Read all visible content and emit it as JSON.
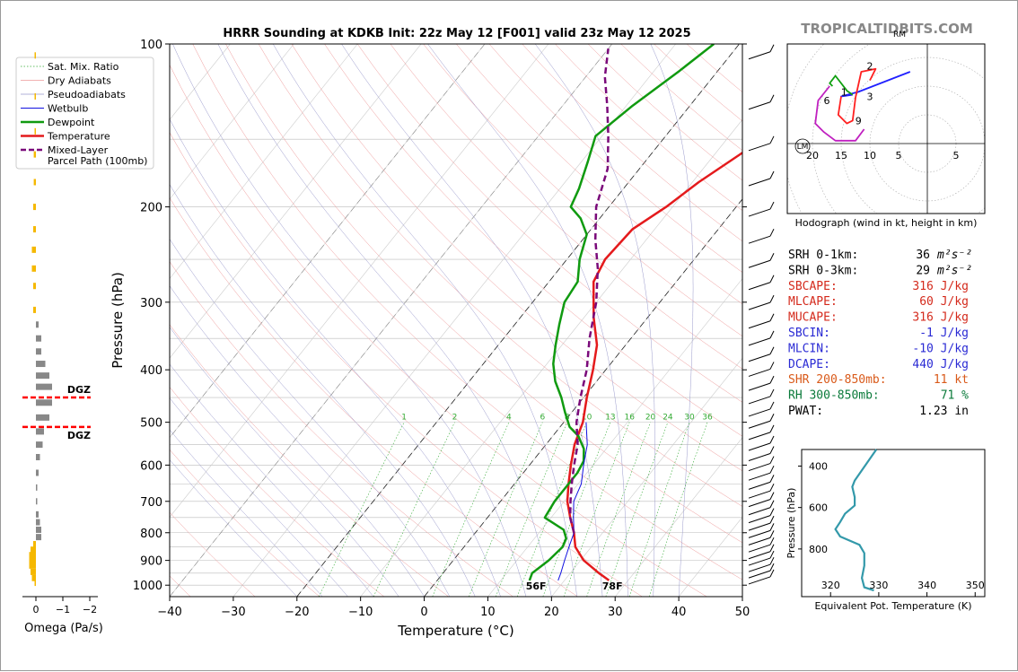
{
  "title": "HRRR Sounding at KDKB Init: 22z May 12 [F001] valid 23z May 12 2025",
  "watermark": "TROPICALTIDBITS.COM",
  "chart_data": [
    {
      "type": "line",
      "name": "skewt",
      "xlabel": "Temperature (°C)",
      "ylabel": "Pressure (hPa)",
      "xlim": [
        -40,
        50
      ],
      "ylim": [
        1050,
        100
      ],
      "y_scale": "log",
      "x_ticks": [
        -40,
        -30,
        -20,
        -10,
        0,
        10,
        20,
        30,
        40,
        50
      ],
      "x_tick_labels": [
        "−40",
        "−30",
        "−20",
        "−10",
        "0",
        "10",
        "20",
        "30",
        "40",
        "50"
      ],
      "y_ticks": [
        100,
        200,
        300,
        400,
        500,
        600,
        700,
        800,
        900,
        1000
      ],
      "legend": {
        "position": "upper-left",
        "entries": [
          "Sat. Mix. Ratio",
          "Dry Adiabats",
          "Pseudoadiabats",
          "Wetbulb",
          "Dewpoint",
          "Temperature",
          "Mixed-Layer\nParcel Path (100mb)"
        ]
      },
      "colors": {
        "temperature": "#e41a1c",
        "dewpoint": "#109a10",
        "wetbulb": "#1010e0",
        "parcel": "#7a0a7a"
      },
      "series": [
        {
          "name": "Temperature",
          "points": [
            [
              27,
              980
            ],
            [
              24.5,
              950
            ],
            [
              20.5,
              900
            ],
            [
              17.5,
              850
            ],
            [
              15.5,
              800
            ],
            [
              13,
              750
            ],
            [
              10.5,
              700
            ],
            [
              8.5,
              650
            ],
            [
              6.5,
              600
            ],
            [
              4.5,
              550
            ],
            [
              3,
              500
            ],
            [
              0.5,
              450
            ],
            [
              -2,
              400
            ],
            [
              -4.5,
              360
            ],
            [
              -8.5,
              320
            ],
            [
              -13,
              275
            ],
            [
              -14,
              250
            ],
            [
              -13.5,
              220
            ],
            [
              -11,
              200
            ],
            [
              -9,
              180
            ],
            [
              -6,
              160
            ],
            [
              -3.5,
              145
            ],
            [
              -1,
              125
            ],
            [
              0.5,
              110
            ],
            [
              1.5,
              100
            ]
          ]
        },
        {
          "name": "Dewpoint",
          "points": [
            [
              14.5,
              980
            ],
            [
              14,
              950
            ],
            [
              15,
              900
            ],
            [
              15.5,
              850
            ],
            [
              15,
              820
            ],
            [
              13.5,
              790
            ],
            [
              9,
              750
            ],
            [
              8.5,
              700
            ],
            [
              8.5,
              650
            ],
            [
              8.5,
              620
            ],
            [
              8,
              590
            ],
            [
              6.5,
              560
            ],
            [
              4,
              530
            ],
            [
              1.5,
              510
            ],
            [
              -1,
              480
            ],
            [
              -3.5,
              450
            ],
            [
              -6.5,
              420
            ],
            [
              -9,
              390
            ],
            [
              -11,
              360
            ],
            [
              -13,
              330
            ],
            [
              -15,
              300
            ],
            [
              -15.5,
              275
            ],
            [
              -18,
              250
            ],
            [
              -20,
              225
            ],
            [
              -23,
              210
            ],
            [
              -26,
              200
            ],
            [
              -27,
              185
            ],
            [
              -29,
              165
            ],
            [
              -31,
              148
            ],
            [
              -29,
              130
            ],
            [
              -26,
              112
            ],
            [
              -24,
              100
            ]
          ]
        },
        {
          "name": "Wetbulb",
          "points": [
            [
              19,
              980
            ],
            [
              18.5,
              950
            ],
            [
              17.5,
              900
            ],
            [
              16.5,
              850
            ],
            [
              15.5,
              800
            ],
            [
              13.5,
              750
            ],
            [
              11.5,
              700
            ],
            [
              10.5,
              650
            ],
            [
              8.5,
              600
            ],
            [
              6.5,
              550
            ],
            [
              3.5,
              500
            ]
          ]
        },
        {
          "name": "Mixed-Layer Parcel Path (100mb)",
          "points": [
            [
              15.5,
              800
            ],
            [
              13,
              750
            ],
            [
              11,
              700
            ],
            [
              9,
              650
            ],
            [
              7,
              600
            ],
            [
              5,
              550
            ],
            [
              2,
              500
            ],
            [
              -0.5,
              450
            ],
            [
              -3,
              400
            ],
            [
              -6.5,
              350
            ],
            [
              -10,
              300
            ],
            [
              -14,
              260
            ],
            [
              -18,
              230
            ],
            [
              -22,
              200
            ],
            [
              -25,
              170
            ],
            [
              -29,
              148
            ],
            [
              -33,
              130
            ],
            [
              -37,
              115
            ],
            [
              -40,
              102
            ]
          ]
        }
      ],
      "annotations": [
        {
          "text": "56F",
          "x": 15,
          "y": 1000,
          "color": "#109a10"
        },
        {
          "text": "78F",
          "x": 27,
          "y": 1000,
          "color": "#e41a1c"
        }
      ],
      "mixing_ratio_labels": [
        "1",
        "2",
        "4",
        "6",
        "8",
        "10",
        "13",
        "16",
        "20",
        "24",
        "30",
        "36"
      ]
    },
    {
      "type": "bar",
      "name": "omega",
      "xlabel": "Omega (Pa/s)",
      "x_ticks": [
        0,
        -1,
        -2
      ],
      "x_tick_labels": [
        "0",
        "−1",
        "−2"
      ],
      "xlim": [
        0.3,
        -2.4
      ],
      "values": [
        [
          105,
          0.05
        ],
        [
          125,
          0.05
        ],
        [
          145,
          0.05
        ],
        [
          160,
          0.08
        ],
        [
          180,
          0.08
        ],
        [
          200,
          0.1
        ],
        [
          220,
          0.1
        ],
        [
          240,
          0.15
        ],
        [
          260,
          0.15
        ],
        [
          280,
          0.1
        ],
        [
          310,
          0.1
        ],
        [
          330,
          -0.1
        ],
        [
          350,
          -0.2
        ],
        [
          370,
          -0.2
        ],
        [
          390,
          -0.35
        ],
        [
          410,
          -0.5
        ],
        [
          430,
          -0.6
        ],
        [
          460,
          -0.6
        ],
        [
          490,
          -0.5
        ],
        [
          520,
          -0.3
        ],
        [
          550,
          -0.25
        ],
        [
          580,
          -0.15
        ],
        [
          620,
          -0.1
        ],
        [
          660,
          -0.05
        ],
        [
          700,
          -0.05
        ],
        [
          740,
          -0.1
        ],
        [
          765,
          -0.15
        ],
        [
          790,
          -0.2
        ],
        [
          815,
          -0.2
        ],
        [
          840,
          0.1
        ],
        [
          860,
          0.2
        ],
        [
          880,
          0.25
        ],
        [
          900,
          0.25
        ],
        [
          920,
          0.25
        ],
        [
          945,
          0.2
        ],
        [
          970,
          0.15
        ],
        [
          990,
          0.05
        ]
      ],
      "dgz": {
        "label": "DGZ",
        "top": 450,
        "bottom": 510
      }
    },
    {
      "type": "line",
      "name": "hodograph",
      "xlabel": "Hodograph (wind in kt, height in km)",
      "ring_labels": [
        "20",
        "15",
        "10",
        "5",
        "5"
      ],
      "storm_motion_labels": [
        "LM",
        "RM"
      ],
      "height_labels": [
        "1",
        "2",
        "3",
        "6",
        "9"
      ],
      "series": [
        {
          "name": "0-1km",
          "color": "#2020ff",
          "points": [
            [
              -13,
              8.5
            ],
            [
              -15,
              8.2
            ],
            [
              -12,
              9
            ],
            [
              -3,
              12.5
            ]
          ]
        },
        {
          "name": "1-3km",
          "color": "#ff2020",
          "points": [
            [
              -15,
              8.2
            ],
            [
              -15.5,
              5
            ],
            [
              -14,
              3.5
            ],
            [
              -13,
              4
            ],
            [
              -12.5,
              8
            ],
            [
              -11.5,
              12.5
            ],
            [
              -9,
              13
            ],
            [
              -10,
              11
            ]
          ]
        },
        {
          "name": "3-6km",
          "color": "#10a010",
          "points": [
            [
              -13,
              8.5
            ],
            [
              -14,
              9.2
            ],
            [
              -16,
              11.8
            ],
            [
              -17,
              10.5
            ],
            [
              -16.5,
              10
            ]
          ]
        },
        {
          "name": "6-9km",
          "color": "#c020c0",
          "points": [
            [
              -17,
              10
            ],
            [
              -19,
              7.5
            ],
            [
              -19.5,
              3.5
            ],
            [
              -18,
              2
            ],
            [
              -16,
              0.5
            ],
            [
              -12.5,
              0.5
            ],
            [
              -11,
              2.5
            ]
          ]
        }
      ]
    },
    {
      "type": "line",
      "name": "theta-e",
      "xlabel": "Equivalent Pot. Temperature (K)",
      "ylabel": "Pressure (hPa)",
      "xlim": [
        314,
        352
      ],
      "ylim": [
        1030,
        320
      ],
      "x_ticks": [
        320,
        330,
        340,
        350
      ],
      "y_ticks": [
        400,
        600,
        800
      ],
      "series": [
        {
          "name": "theta-e",
          "color": "#3399aa",
          "points": [
            [
              329.5,
              320
            ],
            [
              328,
              370
            ],
            [
              326.5,
              420
            ],
            [
              325,
              470
            ],
            [
              324.5,
              500
            ],
            [
              325,
              550
            ],
            [
              325,
              590
            ],
            [
              323,
              630
            ],
            [
              322,
              670
            ],
            [
              321,
              705
            ],
            [
              322,
              740
            ],
            [
              326,
              780
            ],
            [
              327,
              820
            ],
            [
              327,
              880
            ],
            [
              326.5,
              940
            ],
            [
              327,
              985
            ],
            [
              329,
              1000
            ]
          ]
        }
      ]
    }
  ],
  "stats": [
    {
      "label": "SRH 0-1km:",
      "value": "36",
      "unit": "m²s⁻²",
      "color": "#000000"
    },
    {
      "label": "SRH 0-3km:",
      "value": "29",
      "unit": "m²s⁻²",
      "color": "#000000"
    },
    {
      "label": "SBCAPE:",
      "value": "316 J/kg",
      "unit": "",
      "color": "#d42a1c"
    },
    {
      "label": "MLCAPE:",
      "value": "60 J/kg",
      "unit": "",
      "color": "#d42a1c"
    },
    {
      "label": "MUCAPE:",
      "value": "316 J/kg",
      "unit": "",
      "color": "#d42a1c"
    },
    {
      "label": "SBCIN:",
      "value": "-1 J/kg",
      "unit": "",
      "color": "#2a2ad4"
    },
    {
      "label": "MLCIN:",
      "value": "-10 J/kg",
      "unit": "",
      "color": "#2a2ad4"
    },
    {
      "label": "DCAPE:",
      "value": "440 J/kg",
      "unit": "",
      "color": "#2a2ad4"
    },
    {
      "label": "SHR 200-850mb:",
      "value": "11 kt",
      "unit": "",
      "color": "#d95a1a"
    },
    {
      "label": "RH 300-850mb:",
      "value": "71 %",
      "unit": "",
      "color": "#0a7a3a"
    },
    {
      "label": "PWAT:",
      "value": "1.23 in",
      "unit": "",
      "color": "#000000"
    }
  ]
}
